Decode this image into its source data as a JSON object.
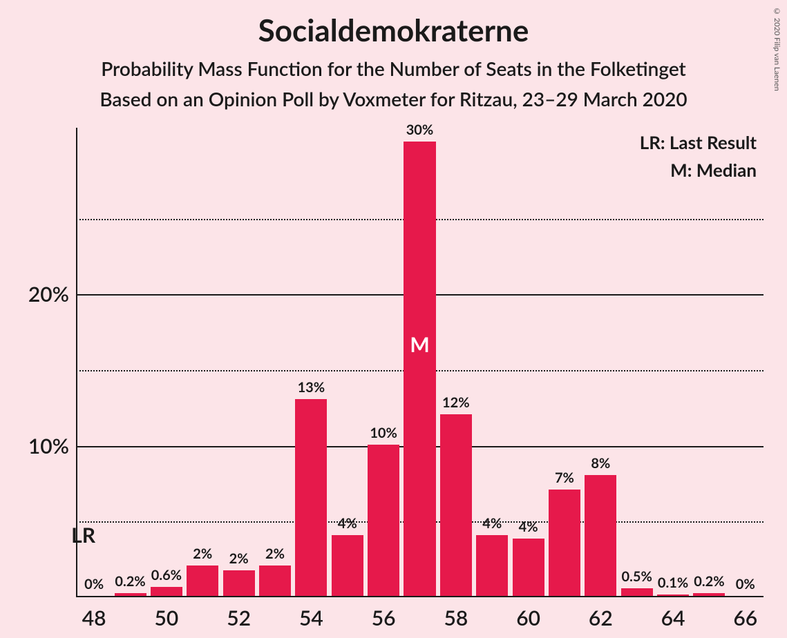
{
  "title": "Socialdemokraterne",
  "subtitle1": "Probability Mass Function for the Number of Seats in the Folketinget",
  "subtitle2": "Based on an Opinion Poll by Voxmeter for Ritzau, 23–29 March 2020",
  "copyright": "© 2020 Filip van Laenen",
  "legend_lr": "LR: Last Result",
  "legend_m": "M: Median",
  "lr_marker": "LR",
  "median_marker": "M",
  "chart": {
    "type": "bar",
    "background_color": "#fce4e8",
    "bar_color": "#e6194b",
    "axis_color": "#1a1a1a",
    "grid_color": "#1a1a1a",
    "title_fontsize": 44,
    "subtitle_fontsize": 28,
    "axis_label_fontsize": 30,
    "bar_label_fontsize": 20,
    "legend_fontsize": 26,
    "median_fontsize": 30,
    "lr_fontsize": 30,
    "ylim_max": 31,
    "y_major_ticks": [
      10,
      20
    ],
    "y_minor_ticks": [
      5,
      15,
      25
    ],
    "x_ticks": [
      48,
      50,
      52,
      54,
      56,
      58,
      60,
      62,
      64,
      66
    ],
    "x_min": 48,
    "x_max": 66,
    "bar_width_ratio": 0.88,
    "bars": [
      {
        "x": 48,
        "value": 0,
        "label": "0%"
      },
      {
        "x": 49,
        "value": 0.2,
        "label": "0.2%"
      },
      {
        "x": 50,
        "value": 0.6,
        "label": "0.6%"
      },
      {
        "x": 51,
        "value": 2,
        "label": "2%"
      },
      {
        "x": 52,
        "value": 1.7,
        "label": "2%"
      },
      {
        "x": 53,
        "value": 2,
        "label": "2%"
      },
      {
        "x": 54,
        "value": 13,
        "label": "13%"
      },
      {
        "x": 55,
        "value": 4,
        "label": "4%"
      },
      {
        "x": 56,
        "value": 10,
        "label": "10%"
      },
      {
        "x": 57,
        "value": 30,
        "label": "30%",
        "median": true
      },
      {
        "x": 58,
        "value": 12,
        "label": "12%"
      },
      {
        "x": 59,
        "value": 4,
        "label": "4%"
      },
      {
        "x": 60,
        "value": 3.8,
        "label": "4%"
      },
      {
        "x": 61,
        "value": 7,
        "label": "7%"
      },
      {
        "x": 62,
        "value": 8,
        "label": "8%"
      },
      {
        "x": 63,
        "value": 0.5,
        "label": "0.5%"
      },
      {
        "x": 64,
        "value": 0.1,
        "label": "0.1%"
      },
      {
        "x": 65,
        "value": 0.2,
        "label": "0.2%"
      },
      {
        "x": 66,
        "value": 0,
        "label": "0%"
      }
    ],
    "lr_x": 48
  }
}
